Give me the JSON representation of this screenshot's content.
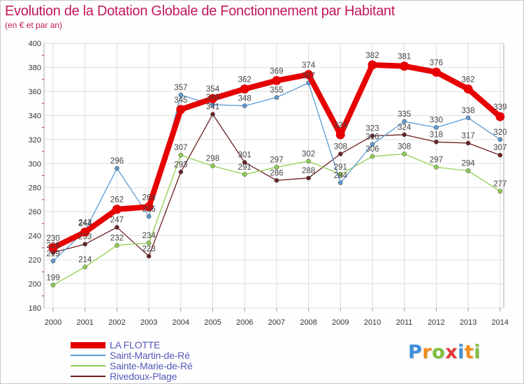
{
  "header": {
    "title": "Evolution de la Dotation Globale de Fonctionnement par Habitant",
    "subtitle": "(en € et par an)"
  },
  "brand": {
    "logo_text": "Proxiti",
    "letters": [
      {
        "ch": "P",
        "color": "#3f8fd8"
      },
      {
        "ch": "r",
        "color": "#f28c1e"
      },
      {
        "ch": "o",
        "color": "#7fbf3f"
      },
      {
        "ch": "x",
        "color": "#e53935"
      },
      {
        "ch": "i",
        "color": "#3f8fd8"
      },
      {
        "ch": "t",
        "color": "#f28c1e"
      },
      {
        "ch": "i",
        "color": "#7fbf3f"
      }
    ]
  },
  "chart_data": {
    "type": "line",
    "title": "Evolution de la Dotation Globale de Fonctionnement par Habitant",
    "subtitle": "(en € et par an)",
    "xlabel": "",
    "ylabel": "",
    "categories": [
      "2000",
      "2001",
      "2002",
      "2003",
      "2004",
      "2005",
      "2006",
      "2007",
      "2008",
      "2009",
      "2010",
      "2011",
      "2012",
      "2013",
      "2014"
    ],
    "ylim": [
      180,
      400
    ],
    "yticks": [
      180,
      200,
      220,
      240,
      260,
      280,
      300,
      320,
      340,
      360,
      380,
      400
    ],
    "grid": true,
    "legend_position": "bottom-left",
    "series": [
      {
        "name": "LA FLOTTE",
        "color": "#e60000",
        "values": [
          230,
          243,
          262,
          264,
          345,
          354,
          362,
          369,
          374,
          324,
          382,
          381,
          376,
          362,
          339
        ],
        "labels": [
          "230",
          "243",
          "262",
          "264",
          "345",
          "354",
          "362",
          "369",
          "374",
          "324",
          "382",
          "381",
          "376",
          "362",
          "339"
        ]
      },
      {
        "name": "Saint-Martin-de-Ré",
        "color": "#5b9bd5",
        "values": [
          219,
          244,
          296,
          256,
          357,
          349,
          348,
          355,
          367,
          284,
          316,
          335,
          330,
          338,
          320
        ],
        "labels": [
          "219",
          "244",
          "296",
          "256",
          "357",
          "349",
          "348",
          "355",
          "367",
          "284",
          "316",
          "335",
          "330",
          "338",
          "320"
        ]
      },
      {
        "name": "Sainte-Marie-de-Ré",
        "color": "#90d050",
        "values": [
          199,
          214,
          232,
          234,
          307,
          298,
          291,
          297,
          302,
          291,
          306,
          308,
          297,
          294,
          277
        ],
        "labels": [
          "199",
          "214",
          "232",
          "234",
          "307",
          "298",
          "291",
          "297",
          "302",
          "291",
          "306",
          "308",
          "297",
          "294",
          "277"
        ]
      },
      {
        "name": "Rivedoux-Plage",
        "color": "#6b1f1f",
        "values": [
          226,
          233,
          247,
          223,
          293,
          341,
          301,
          286,
          288,
          308,
          323,
          324,
          318,
          317,
          307
        ],
        "labels": [
          "226",
          "233",
          "247",
          "223",
          "293",
          "341",
          "301",
          "286",
          "288",
          "308",
          "323",
          "324",
          "318",
          "317",
          "307"
        ]
      }
    ]
  }
}
